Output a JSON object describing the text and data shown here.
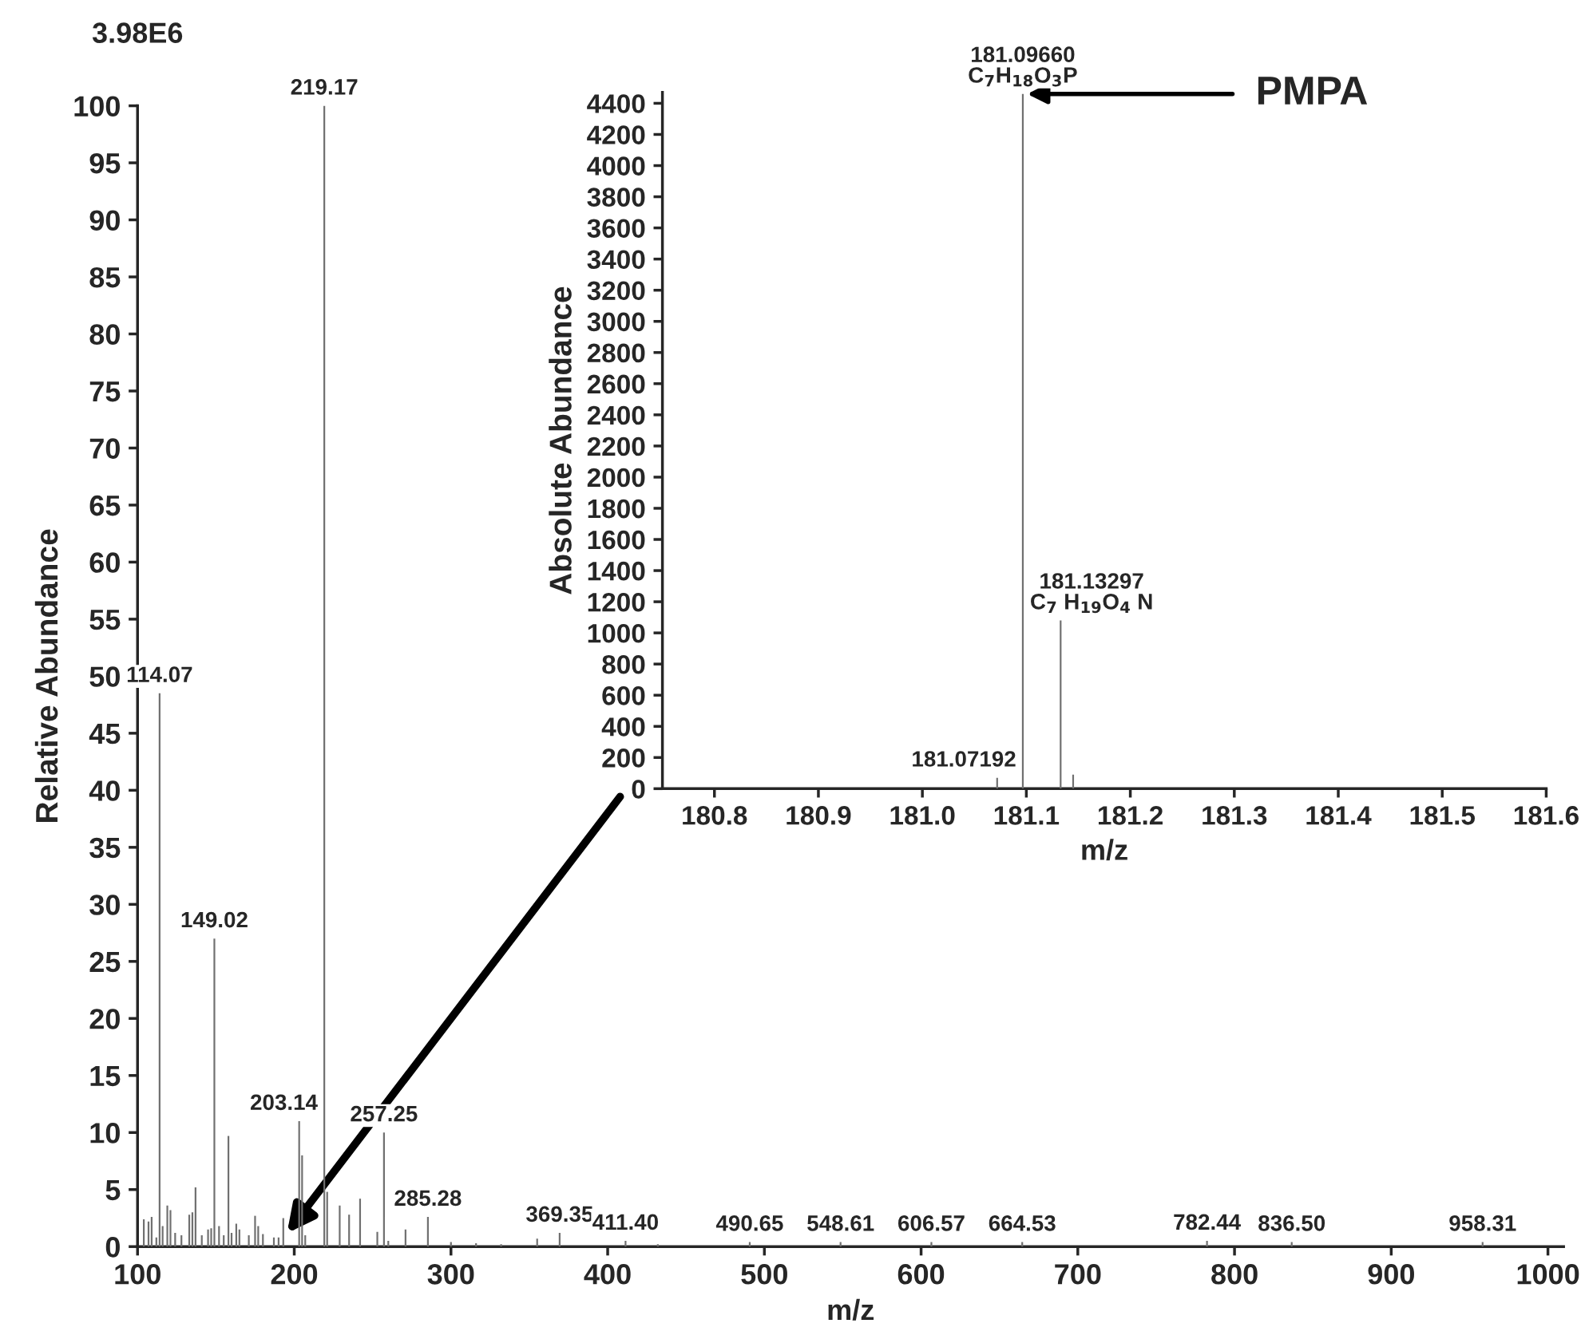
{
  "chart_data": [
    {
      "type": "bar",
      "xlabel": "m/z",
      "ylabel": "Relative Abundance",
      "annotations": [
        "3.98E6",
        {
          "text": "114.07",
          "x": 114.07,
          "y": 48.5
        },
        {
          "text": "149.02",
          "x": 149.02,
          "y": 27
        },
        {
          "text": "203.14",
          "x": 203.14,
          "y": 11
        },
        {
          "text": "219.17",
          "x": 219.17,
          "y": 100
        },
        {
          "text": "257.25",
          "x": 257.25,
          "y": 10
        },
        {
          "text": "285.28",
          "x": 285.28,
          "y": 2.6
        },
        {
          "text": "369.35",
          "x": 369.35,
          "y": 1.2
        },
        {
          "text": "411.40",
          "x": 411.4,
          "y": 0.5
        },
        {
          "text": "490.65",
          "x": 490.65,
          "y": 0.4
        },
        {
          "text": "548.61",
          "x": 548.61,
          "y": 0.4
        },
        {
          "text": "606.57",
          "x": 606.57,
          "y": 0.4
        },
        {
          "text": "664.53",
          "x": 664.53,
          "y": 0.4
        },
        {
          "text": "782.44",
          "x": 782.44,
          "y": 0.5
        },
        {
          "text": "836.50",
          "x": 836.5,
          "y": 0.4
        },
        {
          "text": "958.31",
          "x": 958.31,
          "y": 0.4
        }
      ],
      "xlim": [
        100,
        1010
      ],
      "xticks": [
        100,
        200,
        300,
        400,
        500,
        600,
        700,
        800,
        900,
        1000
      ],
      "ylim": [
        0,
        100
      ],
      "yticks": [
        0,
        5,
        10,
        15,
        20,
        25,
        30,
        35,
        40,
        45,
        50,
        55,
        60,
        65,
        70,
        75,
        80,
        85,
        90,
        95,
        100
      ],
      "series": [
        {
          "color": "#707070",
          "x": [
            104,
            107,
            109,
            112,
            114.07,
            116,
            119,
            121,
            124,
            128,
            133,
            135,
            137,
            141,
            145,
            147,
            149.02,
            152,
            155,
            158,
            160,
            163,
            165,
            171,
            175,
            177,
            180,
            187,
            190,
            193,
            203.14,
            205,
            207,
            219.17,
            221,
            229,
            235,
            242,
            253,
            257.25,
            260,
            271,
            285.28,
            300,
            316,
            332,
            355,
            369.35,
            411.4,
            432,
            490.65,
            548.61,
            606.57,
            664.53,
            782.44,
            836.5,
            958.31
          ],
          "values": [
            2.4,
            2.2,
            2.6,
            0.8,
            48.5,
            1.8,
            3.6,
            3.2,
            1.2,
            1.0,
            2.8,
            3.0,
            5.2,
            1.0,
            1.5,
            1.6,
            27,
            1.8,
            1.0,
            9.7,
            1.2,
            2.0,
            1.5,
            1.0,
            2.7,
            1.8,
            1.1,
            0.8,
            0.8,
            2.5,
            11,
            8,
            1.0,
            100,
            4.8,
            3.6,
            2.8,
            4.2,
            1.3,
            10,
            0.5,
            1.5,
            2.6,
            0.4,
            0.3,
            0.2,
            0.7,
            1.2,
            0.5,
            0.2,
            0.4,
            0.4,
            0.4,
            0.4,
            0.5,
            0.4,
            0.4
          ]
        }
      ]
    },
    {
      "type": "bar",
      "xlabel": "m/z",
      "ylabel": "Absolute Abundance",
      "annotations": [
        {
          "text": "181.07192",
          "x": 181.07192,
          "y": 70
        },
        {
          "text": "181.09660\nC$_{7}$H$_{18}$O$_{3}$P",
          "x": 181.0966,
          "y": 4460
        },
        {
          "text": "181.13297\nC$_{7}$ H$_{19}$O$_{4}$ N",
          "x": 181.13297,
          "y": 1080
        },
        {
          "text": "PMPA",
          "x": 181.0966,
          "y": 4460
        }
      ],
      "xlim": [
        180.75,
        181.6
      ],
      "xticks": [
        180.8,
        180.9,
        {
          "value": 181.0,
          "label": "181.0"
        },
        181.1,
        181.2,
        181.3,
        181.4,
        181.5,
        181.6
      ],
      "ylim": [
        0,
        4470
      ],
      "yticks": [
        0,
        200,
        400,
        600,
        800,
        1000,
        1200,
        1400,
        1600,
        1800,
        2000,
        2200,
        2400,
        2600,
        2800,
        3000,
        3200,
        3400,
        3600,
        3800,
        4000,
        4200,
        4400
      ],
      "series": [
        {
          "color": "#707070",
          "x": [
            181.07192,
            181.0966,
            181.13297,
            181.145
          ],
          "values": [
            70,
            4460,
            1080,
            90
          ]
        }
      ]
    }
  ]
}
